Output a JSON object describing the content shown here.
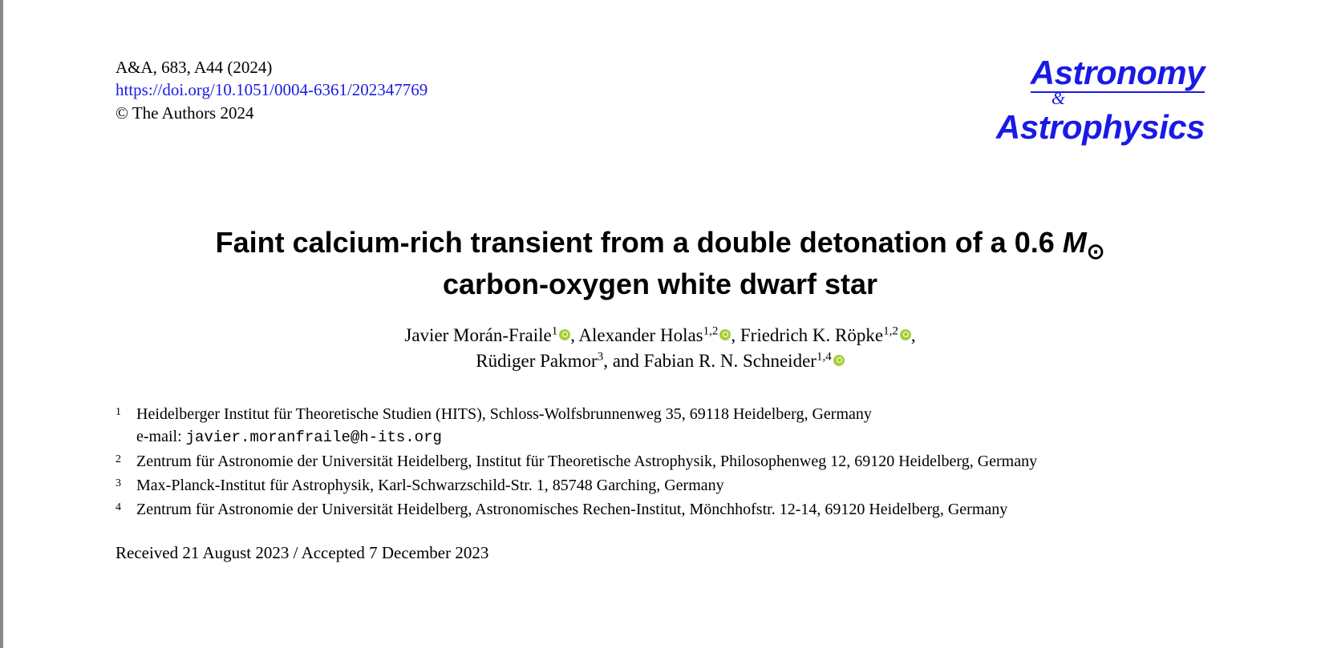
{
  "header": {
    "citation": "A&A, 683, A44 (2024)",
    "doi": "https://doi.org/10.1051/0004-6361/202347769",
    "copyright": "© The Authors 2024"
  },
  "journal": {
    "line1": "Astronomy",
    "amp": "&",
    "line2": "Astrophysics"
  },
  "title": {
    "prefix": "Faint calcium-rich transient from a double detonation of a 0.6 ",
    "mass_symbol_M": "M",
    "line2": "carbon-oxygen white dwarf star"
  },
  "authors": {
    "a1_name": "Javier Morán-Fraile",
    "a1_sup": "1",
    "a2_name": ", Alexander Holas",
    "a2_sup": "1,2",
    "a3_name": ", Friedrich K. Röpke",
    "a3_sup": "1,2",
    "comma": ",",
    "a4_name": "Rüdiger Pakmor",
    "a4_sup": "3",
    "and": ", and ",
    "a5_name": "Fabian R. N. Schneider",
    "a5_sup": "1,4"
  },
  "affiliations": {
    "n1": "1",
    "t1": "Heidelberger Institut für Theoretische Studien (HITS), Schloss-Wolfsbrunnenweg 35, 69118 Heidelberg, Germany",
    "email_label": "e-mail: ",
    "email": "javier.moranfraile@h-its.org",
    "n2": "2",
    "t2": "Zentrum für Astronomie der Universität Heidelberg, Institut für Theoretische Astrophysik, Philosophenweg 12, 69120 Heidelberg, Germany",
    "n3": "3",
    "t3": "Max-Planck-Institut für Astrophysik, Karl-Schwarzschild-Str. 1, 85748 Garching, Germany",
    "n4": "4",
    "t4": "Zentrum für Astronomie der Universität Heidelberg, Astronomisches Rechen-Institut, Mönchhofstr. 12-14, 69120 Heidelberg, Germany"
  },
  "dates": "Received 21 August 2023 / Accepted 7 December 2023",
  "colors": {
    "link": "#1a1ae6",
    "orcid": "#a6ce39",
    "text": "#000000",
    "background": "#ffffff"
  }
}
